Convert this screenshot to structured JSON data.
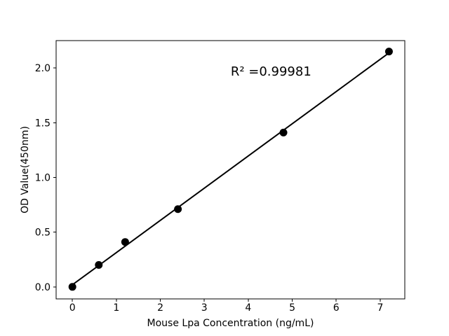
{
  "chart_data": {
    "type": "scatter",
    "title": "",
    "xlabel": "Mouse Lpa Concentration (ng/mL)",
    "ylabel": "OD Value(450nm)",
    "x": [
      0,
      0.6,
      1.2,
      2.4,
      4.8,
      7.2
    ],
    "y": [
      0.0,
      0.2,
      0.41,
      0.71,
      1.41,
      2.15
    ],
    "fit_line": {
      "type": "linear-least-squares",
      "x_start": 0,
      "x_end": 7.2
    },
    "annotation": {
      "text": "R² =0.99981",
      "x": 3.6,
      "y": 1.93
    },
    "x_ticks": [
      0,
      1,
      2,
      3,
      4,
      5,
      6,
      7
    ],
    "y_ticks": [
      0.0,
      0.5,
      1.0,
      1.5,
      2.0
    ],
    "xlim": [
      -0.37,
      7.56
    ],
    "ylim": [
      -0.11,
      2.25
    ],
    "grid": false,
    "legend": null,
    "marker_color": "#000000",
    "line_color": "#000000",
    "axis_color": "#000000",
    "background": "#ffffff"
  }
}
